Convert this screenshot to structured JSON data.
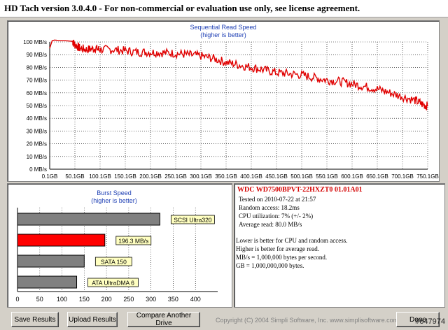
{
  "window": {
    "title": "HD Tach version 3.0.4.0  - For non-commercial or evaluation use only, see license agreement."
  },
  "seq_chart": {
    "title": "Sequential Read Speed",
    "subtitle": "(higher is better)",
    "y_ticks": [
      "0 MB/s",
      "10 MB/s",
      "20 MB/s",
      "30 MB/s",
      "40 MB/s",
      "50 MB/s",
      "60 MB/s",
      "70 MB/s",
      "80 MB/s",
      "90 MB/s",
      "100 MB/s"
    ],
    "x_ticks": [
      "0.1GB",
      "50.1GB",
      "100.1GB",
      "150.1GB",
      "200.1GB",
      "250.1GB",
      "300.1GB",
      "350.1GB",
      "400.1GB",
      "450.1GB",
      "500.1GB",
      "550.1GB",
      "600.1GB",
      "650.1GB",
      "700.1GB",
      "750.1GB"
    ],
    "line_color": "#e00000"
  },
  "chart_data": [
    {
      "type": "line",
      "title": "Sequential Read Speed",
      "subtitle": "(higher is better)",
      "xlabel": "",
      "ylabel": "",
      "xlim": [
        0.1,
        750.1
      ],
      "ylim": [
        0,
        100
      ],
      "grid": true,
      "series": [
        {
          "x": [
            0.1,
            5,
            10,
            20,
            30,
            45,
            50.1,
            60,
            75,
            90,
            100.1,
            125,
            150.1,
            175,
            200.1,
            225,
            250.1,
            275,
            300.1,
            325,
            350.1,
            375,
            400.1,
            425,
            450.1,
            475,
            500.1,
            525,
            550.1,
            575,
            600.1,
            625,
            650.1,
            675,
            700.1,
            725,
            740,
            750.1
          ],
          "y": [
            95,
            101,
            101.5,
            101,
            101,
            100.5,
            98,
            95,
            94,
            95,
            94,
            94,
            93,
            92,
            92,
            91.5,
            91,
            90,
            89,
            87,
            84,
            82,
            80,
            78,
            76,
            75,
            74,
            72,
            70,
            69,
            67,
            65,
            63,
            60,
            57,
            54,
            51,
            49.5
          ]
        }
      ]
    },
    {
      "type": "bar",
      "title": "Burst Speed",
      "subtitle": "(higher is better)",
      "categories": [
        "SCSI Ultra320",
        "196.3 MB/s",
        "SATA 150",
        "ATA UltraDMA 6"
      ],
      "values": [
        320,
        196.3,
        150,
        133
      ],
      "xlim": [
        0,
        450
      ],
      "x_ticks": [
        "0",
        "50",
        "100",
        "150",
        "200",
        "250",
        "300",
        "350",
        "400"
      ],
      "colors": [
        "#808080",
        "#ff0000",
        "#808080",
        "#808080"
      ]
    }
  ],
  "burst_chart": {
    "title": "Burst Speed",
    "subtitle": "(higher is better)",
    "labels": [
      "SCSI Ultra320",
      "196.3 MB/s",
      "SATA 150",
      "ATA UltraDMA 6"
    ]
  },
  "info": {
    "drive": "WDC WD7500BPVT-22HXZT0 01.01A01",
    "tested_on": "Tested on 2010-07-22 at 21:57",
    "random_access": "Random access: 18.2ms",
    "cpu": "CPU utilization: 7% (+/- 2%)",
    "avg_read": "Average read: 80.0 MB/s",
    "note1": "Lower is better for CPU and random access.",
    "note2": "Higher is better for average read.",
    "note3": "MB/s = 1,000,000 bytes per second.",
    "note4": "GB = 1,000,000,000 bytes."
  },
  "buttons": {
    "save": "Save Results",
    "upload": "Upload Results",
    "compare": "Compare Another Drive",
    "done": "Done"
  },
  "footer": {
    "copyright": "Copyright (C) 2004 Simpli Software, Inc. www.simplisoftware.com",
    "watermark": "#647974"
  }
}
